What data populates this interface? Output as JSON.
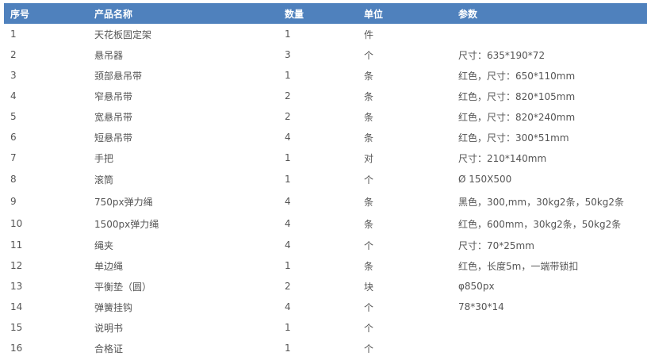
{
  "table": {
    "headers": [
      "序号",
      "产品名称",
      "数量",
      "单位",
      "参数"
    ],
    "header_color": "#4f81bd",
    "rows": [
      [
        "1",
        "天花板固定架",
        "1",
        "件",
        ""
      ],
      [
        "2",
        "悬吊器",
        "3",
        "个",
        "尺寸：635*190*72"
      ],
      [
        "3",
        "颈部悬吊带",
        "1",
        "条",
        "红色，尺寸：650*110mm"
      ],
      [
        "4",
        "窄悬吊带",
        "2",
        "条",
        "红色，尺寸：820*105mm"
      ],
      [
        "5",
        "宽悬吊带",
        "2",
        "条",
        "红色，尺寸：820*240mm"
      ],
      [
        "6",
        "短悬吊带",
        "4",
        "条",
        "红色，尺寸：300*51mm"
      ],
      [
        "7",
        "手把",
        "1",
        "对",
        "尺寸：210*140mm"
      ],
      [
        "8",
        "滚筒",
        "1",
        "个",
        "Ø 150X500"
      ],
      [
        "9",
        "750px弹力绳",
        "4",
        "条",
        "黑色，300,mm，30kg2条，50kg2条"
      ],
      [
        "10",
        "1500px弹力绳",
        "4",
        "条",
        "红色，600mm，30kg2条，50kg2条"
      ],
      [
        "11",
        "绳夹",
        "4",
        "个",
        "尺寸：70*25mm"
      ],
      [
        "12",
        "单边绳",
        "1",
        "条",
        "红色，长度5m，一端带锁扣"
      ],
      [
        "13",
        "平衡垫（圆）",
        "2",
        "块",
        "φ850px"
      ],
      [
        "14",
        "弹簧挂钩",
        "4",
        "个",
        "78*30*14"
      ],
      [
        "15",
        "说明书",
        "1",
        "个",
        ""
      ],
      [
        "16",
        "合格证",
        "1",
        "个",
        ""
      ]
    ]
  }
}
